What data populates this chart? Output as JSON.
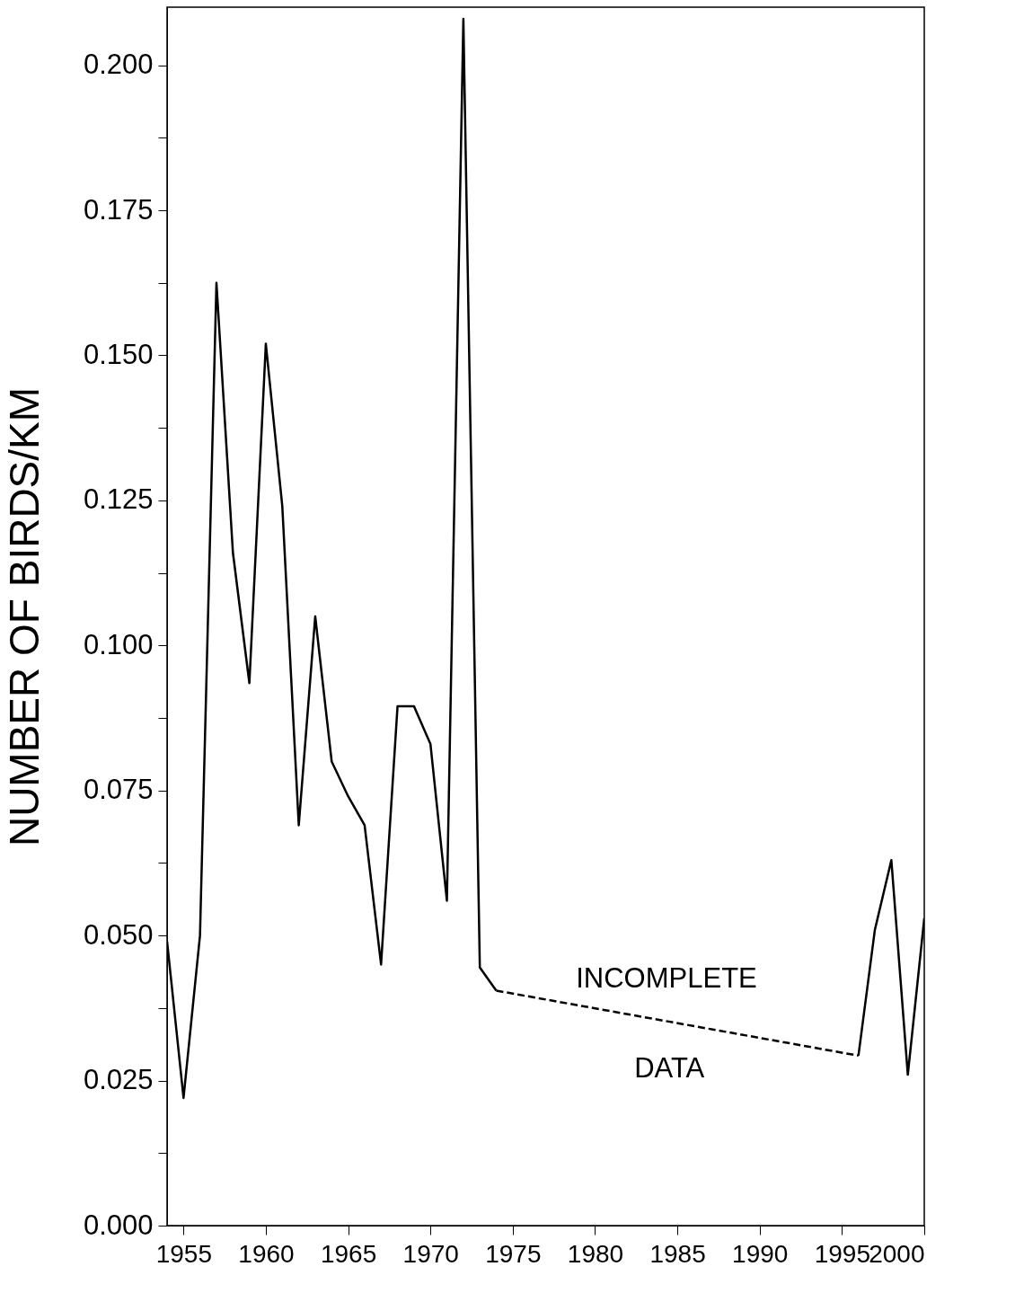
{
  "chart_data": {
    "type": "line",
    "ylabel": "NUMBER OF BIRDS/KM",
    "xlim": [
      1954,
      2000
    ],
    "ylim": [
      0,
      0.21
    ],
    "xticks": [
      1955,
      1960,
      1965,
      1970,
      1975,
      1980,
      1985,
      1990,
      1995,
      2000
    ],
    "yticks": [
      {
        "value": 0,
        "label": "0.000"
      },
      {
        "value": 0.0125,
        "label": null
      },
      {
        "value": 0.025,
        "label": "0.025"
      },
      {
        "value": 0.0375,
        "label": null
      },
      {
        "value": 0.05,
        "label": "0.050"
      },
      {
        "value": 0.0625,
        "label": null
      },
      {
        "value": 0.075,
        "label": "0.075"
      },
      {
        "value": 0.0875,
        "label": null
      },
      {
        "value": 0.1,
        "label": "0.100"
      },
      {
        "value": 0.1125,
        "label": null
      },
      {
        "value": 0.125,
        "label": "0.125"
      },
      {
        "value": 0.1375,
        "label": null
      },
      {
        "value": 0.15,
        "label": "0.150"
      },
      {
        "value": 0.1625,
        "label": null
      },
      {
        "value": 0.175,
        "label": "0.175"
      },
      {
        "value": 0.1875,
        "label": null
      },
      {
        "value": 0.2,
        "label": "0.200"
      }
    ],
    "grid": false,
    "legend": false,
    "marker": "none",
    "series": [
      {
        "color": "#000000",
        "line_style": "solid",
        "x": [
          1954,
          1955,
          1956,
          1957,
          1958,
          1959,
          1960,
          1961,
          1962,
          1963,
          1964,
          1965,
          1966,
          1967,
          1968,
          1969,
          1970,
          1971,
          1972,
          1973,
          1974
        ],
        "values": [
          0.049,
          0.022,
          0.05,
          0.1625,
          0.116,
          0.0935,
          0.152,
          0.124,
          0.069,
          0.105,
          0.08,
          0.074,
          0.069,
          0.045,
          0.0895,
          0.0895,
          0.083,
          0.056,
          0.208,
          0.0445,
          0.0405
        ]
      },
      {
        "color": "#000000",
        "line_style": "dashed",
        "x": [
          1974,
          1996
        ],
        "values": [
          0.0405,
          0.0293
        ]
      },
      {
        "color": "#000000",
        "line_style": "solid",
        "x": [
          1996,
          1997,
          1998,
          1999,
          2000
        ],
        "values": [
          0.0293,
          0.051,
          0.063,
          0.026,
          0.053
        ]
      }
    ],
    "annotations": [
      "INCOMPLETE",
      "DATA"
    ]
  }
}
